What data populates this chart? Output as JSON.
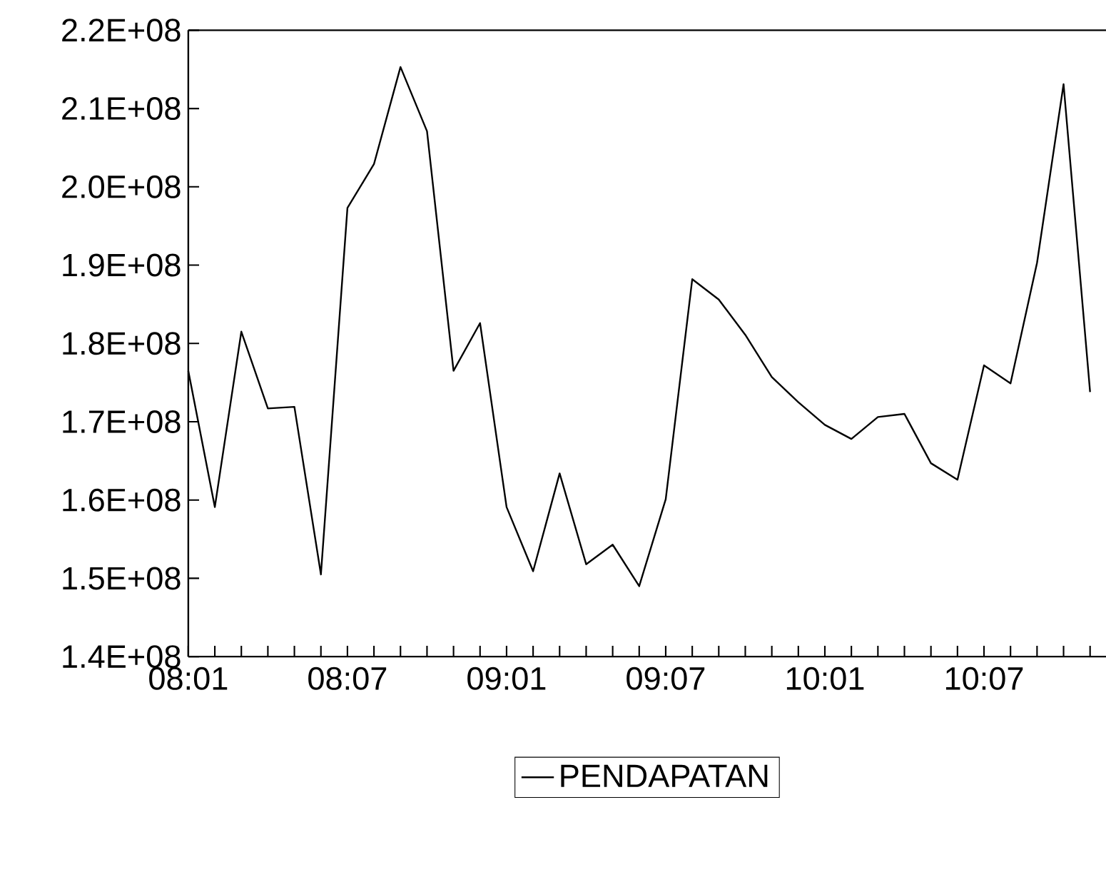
{
  "chart_data": {
    "type": "line",
    "categories": [
      "08:01",
      null,
      null,
      null,
      null,
      null,
      "08:07",
      null,
      null,
      null,
      null,
      null,
      "09:01",
      null,
      null,
      null,
      null,
      null,
      "09:07",
      null,
      null,
      null,
      null,
      null,
      "10:01",
      null,
      null,
      null,
      null,
      null,
      "10:07",
      null,
      null,
      null,
      null
    ],
    "series": [
      {
        "name": "PENDAPATAN",
        "color": "#000000",
        "values": [
          176500000,
          159100000,
          181500000,
          171700000,
          171900000,
          150500000,
          197300000,
          202900000,
          215300000,
          207100000,
          176500000,
          182600000,
          159100000,
          150900000,
          163400000,
          151800000,
          154300000,
          149000000,
          160100000,
          188200000,
          185600000,
          181100000,
          175700000,
          172500000,
          169600000,
          167800000,
          170600000,
          171000000,
          164700000,
          162600000,
          177200000,
          174900000,
          190300000,
          213100000,
          173800000
        ]
      }
    ],
    "ylim": [
      140000000,
      220000000
    ],
    "yticks": [
      {
        "value": 140000000,
        "label": "1.4E+08"
      },
      {
        "value": 150000000,
        "label": "1.5E+08"
      },
      {
        "value": 160000000,
        "label": "1.6E+08"
      },
      {
        "value": 170000000,
        "label": "1.7E+08"
      },
      {
        "value": 180000000,
        "label": "1.8E+08"
      },
      {
        "value": 190000000,
        "label": "1.9E+08"
      },
      {
        "value": 200000000,
        "label": "2.0E+08"
      },
      {
        "value": 210000000,
        "label": "2.1E+08"
      },
      {
        "value": 220000000,
        "label": "2.2E+08"
      }
    ],
    "legend": "bottom",
    "grid": false,
    "marker": "none",
    "line_style": "solid"
  }
}
